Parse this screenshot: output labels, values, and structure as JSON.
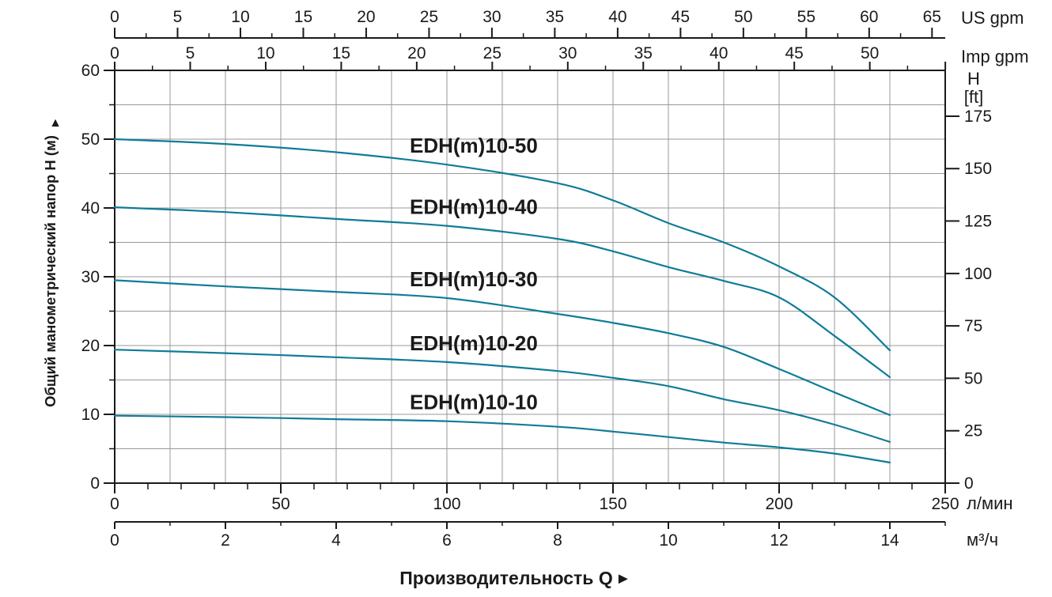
{
  "page": {
    "background": "#ffffff"
  },
  "chart_data": {
    "type": "line",
    "title": "",
    "xlabel": "Производительность Q",
    "xlabel_arrow": "►",
    "ylabel": "Общий манометрический напор H (м)",
    "ylabel_arrow": "▲",
    "grid": true,
    "x_range_lmin": [
      0,
      250
    ],
    "y_range_m": [
      0,
      60
    ],
    "axes": {
      "top_us_gpm": {
        "unit": "US gpm",
        "major_labels": [
          0,
          5,
          10,
          15,
          20,
          25,
          30,
          35,
          40,
          45,
          50,
          55,
          60,
          65
        ],
        "major_step": 5,
        "minor_step": 2.5,
        "lmin_per_unit": 3.785
      },
      "top_imp_gpm": {
        "unit": "Imp gpm",
        "major_labels": [
          0,
          5,
          10,
          15,
          20,
          25,
          30,
          35,
          40,
          45,
          50
        ],
        "major_step": 5,
        "minor_step": 2.5,
        "lmin_per_unit": 4.546
      },
      "left_head_m": {
        "unit": "",
        "major_labels": [
          60,
          50,
          40,
          30,
          20,
          10,
          0
        ],
        "major_step": 10,
        "minor_step": 5
      },
      "right_head_ft": {
        "unit_line1": "H",
        "unit_line2": "[ft]",
        "major_labels": [
          175,
          150,
          125,
          100,
          75,
          50,
          25,
          0
        ],
        "major_step": 25,
        "m_per_unit": 0.3048
      },
      "bottom_lmin": {
        "unit": "л/мин",
        "major_labels": [
          0,
          50,
          100,
          150,
          200,
          250
        ],
        "major_step": 50,
        "minor_step": 10,
        "lmin_per_unit": 1
      },
      "bottom_m3h": {
        "unit": "м³/ч",
        "major_labels": [
          0,
          2,
          4,
          6,
          8,
          10,
          12,
          14
        ],
        "major_step": 2,
        "minor_step": 1,
        "lmin_per_unit": 16.6667
      }
    },
    "series": [
      {
        "name": "EDH(m)10-50",
        "points_m3h_m": [
          [
            0,
            50.0
          ],
          [
            2,
            49.3
          ],
          [
            4,
            48.1
          ],
          [
            6,
            46.3
          ],
          [
            8,
            43.6
          ],
          [
            9,
            41.1
          ],
          [
            10,
            37.8
          ],
          [
            11,
            35.0
          ],
          [
            12,
            31.5
          ],
          [
            13,
            27.0
          ],
          [
            14,
            19.3
          ]
        ]
      },
      {
        "name": "EDH(m)10-40",
        "points_m3h_m": [
          [
            0,
            40.1
          ],
          [
            2,
            39.4
          ],
          [
            4,
            38.4
          ],
          [
            6,
            37.4
          ],
          [
            8,
            35.5
          ],
          [
            9,
            33.7
          ],
          [
            10,
            31.4
          ],
          [
            11,
            29.4
          ],
          [
            12,
            27.0
          ],
          [
            13,
            21.4
          ],
          [
            14,
            15.4
          ]
        ]
      },
      {
        "name": "EDH(m)10-30",
        "points_m3h_m": [
          [
            0,
            29.5
          ],
          [
            2,
            28.6
          ],
          [
            4,
            27.8
          ],
          [
            6,
            26.9
          ],
          [
            8,
            24.6
          ],
          [
            9,
            23.3
          ],
          [
            10,
            21.8
          ],
          [
            11,
            19.8
          ],
          [
            12,
            16.6
          ],
          [
            13,
            13.2
          ],
          [
            14,
            9.9
          ]
        ]
      },
      {
        "name": "EDH(m)10-20",
        "points_m3h_m": [
          [
            0,
            19.4
          ],
          [
            2,
            18.9
          ],
          [
            4,
            18.3
          ],
          [
            6,
            17.6
          ],
          [
            8,
            16.3
          ],
          [
            9,
            15.3
          ],
          [
            10,
            14.1
          ],
          [
            11,
            12.2
          ],
          [
            12,
            10.6
          ],
          [
            13,
            8.5
          ],
          [
            14,
            6.0
          ]
        ]
      },
      {
        "name": "EDH(m)10-10",
        "points_m3h_m": [
          [
            0,
            9.8
          ],
          [
            2,
            9.6
          ],
          [
            4,
            9.3
          ],
          [
            6,
            9.0
          ],
          [
            8,
            8.2
          ],
          [
            9,
            7.5
          ],
          [
            10,
            6.7
          ],
          [
            11,
            5.9
          ],
          [
            12,
            5.2
          ],
          [
            13,
            4.3
          ],
          [
            14,
            3.0
          ]
        ]
      }
    ],
    "colors": {
      "curve": "#0f7c98",
      "grid": "#999999",
      "axis": "#1a1a1a",
      "label_text": "#111111"
    },
    "legend_position": "inline-labels-above-curves"
  }
}
